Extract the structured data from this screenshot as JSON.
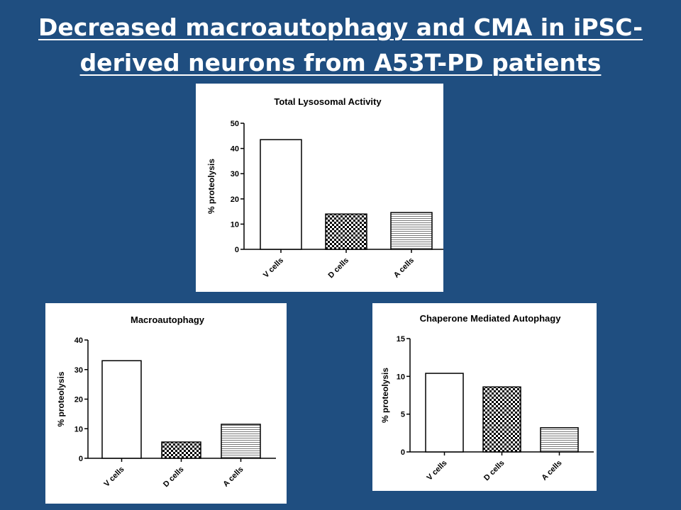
{
  "slide": {
    "title_line1": "Decreased macroautophagy and CMA in iPSC-",
    "title_line2": "derived neurons from A53T-PD patients"
  },
  "chart_data": [
    {
      "type": "bar",
      "title": "Total Lysosomal Activity",
      "ylabel": "% proteolysis",
      "xlabel": "",
      "categories": [
        "V cells",
        "D cells",
        "A cells"
      ],
      "values": [
        43.5,
        14,
        14.6
      ],
      "ylim": [
        0,
        50
      ],
      "yticks": [
        0,
        10,
        20,
        30,
        40,
        50
      ],
      "patterns": [
        "open",
        "checker",
        "hlines"
      ],
      "grid": false
    },
    {
      "type": "bar",
      "title": "Macroautophagy",
      "ylabel": "% proteolysis",
      "xlabel": "",
      "categories": [
        "V cells",
        "D cells",
        "A cells"
      ],
      "values": [
        33,
        5.5,
        11.5
      ],
      "ylim": [
        0,
        40
      ],
      "yticks": [
        0,
        10,
        20,
        30,
        40
      ],
      "patterns": [
        "open",
        "checker",
        "hlines"
      ],
      "grid": false
    },
    {
      "type": "bar",
      "title": "Chaperone Mediated Autophagy",
      "ylabel": "% proteolysis",
      "xlabel": "",
      "categories": [
        "V cells",
        "D cells",
        "A cells"
      ],
      "values": [
        10.4,
        8.6,
        3.2
      ],
      "ylim": [
        0,
        15
      ],
      "yticks": [
        0,
        5,
        10,
        15
      ],
      "patterns": [
        "open",
        "checker",
        "hlines"
      ],
      "grid": false
    }
  ],
  "colors": {
    "background": "#1f4e80",
    "panel": "#ffffff",
    "ink": "#000000"
  }
}
